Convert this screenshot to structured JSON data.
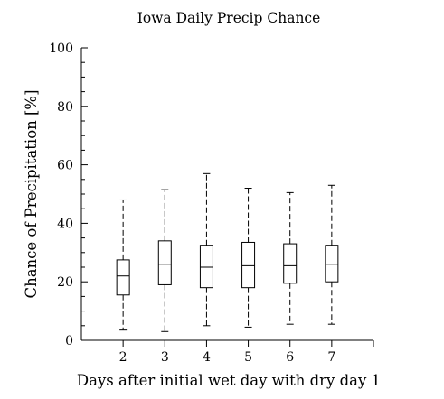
{
  "chart_data": {
    "type": "box",
    "title": "Iowa Daily Precip Chance",
    "xlabel": "Days after initial wet day with dry day 1",
    "ylabel": "Chance of Precipitation [%]",
    "xlim": [
      1,
      8
    ],
    "ylim": [
      0,
      100
    ],
    "yticks": [
      0,
      20,
      40,
      60,
      80,
      100
    ],
    "ytick_labels": [
      "0",
      "20",
      "40",
      "60",
      "80",
      "100"
    ],
    "y_minor_step": 5,
    "categories": [
      "2",
      "3",
      "4",
      "5",
      "6",
      "7"
    ],
    "boxes": [
      {
        "x": 2,
        "whisker_low": 3.5,
        "q1": 15.5,
        "median": 22,
        "q3": 27.5,
        "whisker_high": 48
      },
      {
        "x": 3,
        "whisker_low": 3,
        "q1": 19,
        "median": 26,
        "q3": 34,
        "whisker_high": 51.5
      },
      {
        "x": 4,
        "whisker_low": 5,
        "q1": 18,
        "median": 25,
        "q3": 32.5,
        "whisker_high": 57
      },
      {
        "x": 5,
        "whisker_low": 4.5,
        "q1": 18,
        "median": 25.5,
        "q3": 33.5,
        "whisker_high": 52
      },
      {
        "x": 6,
        "whisker_low": 5.5,
        "q1": 19.5,
        "median": 25.5,
        "q3": 33,
        "whisker_high": 50.5
      },
      {
        "x": 7,
        "whisker_low": 5.5,
        "q1": 20,
        "median": 26,
        "q3": 32.5,
        "whisker_high": 53
      }
    ],
    "grid": false,
    "legend": "none",
    "colors": {
      "stroke": "#000000",
      "box_fill": "#ffffff"
    }
  }
}
